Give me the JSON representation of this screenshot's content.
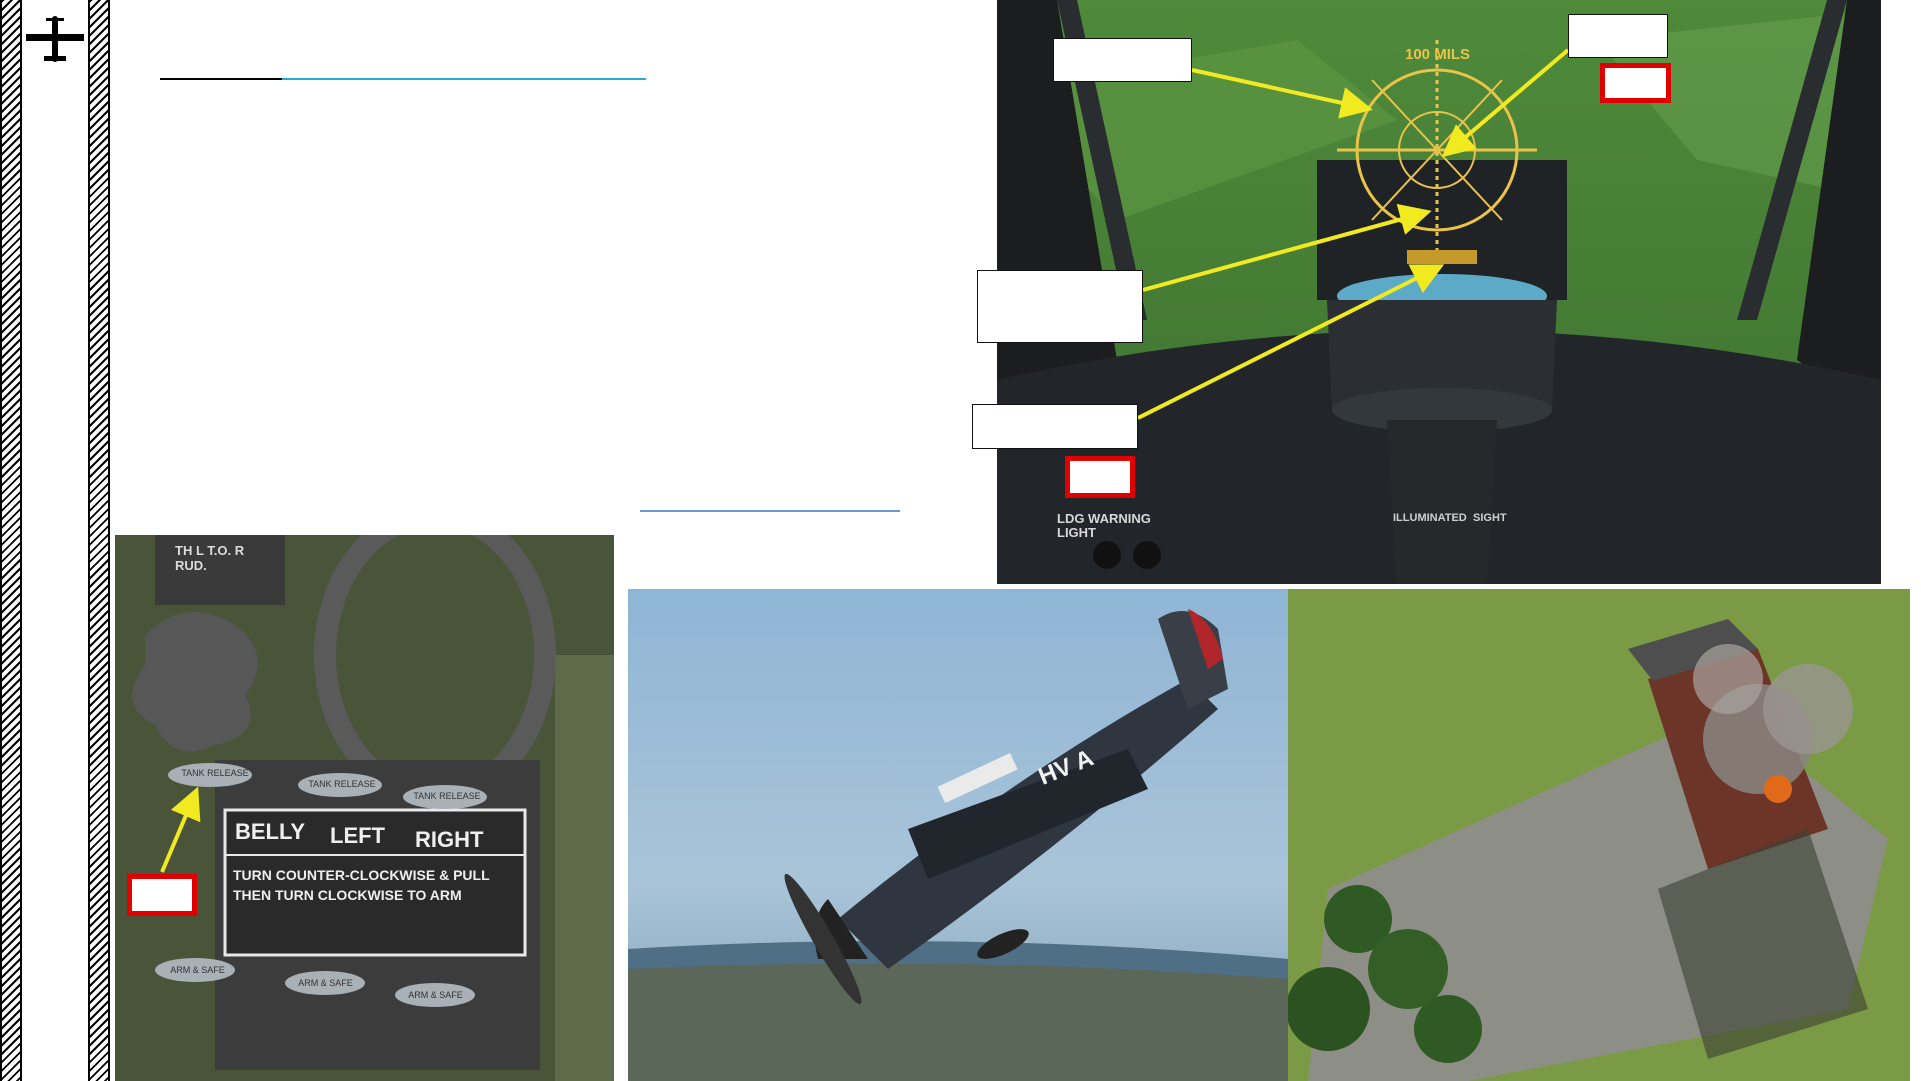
{
  "sidebar": {
    "logo_icon": "plane-icon"
  },
  "cockpit_sight": {
    "reticle_text": "100 MILS",
    "placard_warning": "LDG WARNING LIGHT",
    "placard_sight_l1": "ILLUMINATED",
    "placard_sight_l2": "SIGHT"
  },
  "bomb_release_panel": {
    "switch_labels": [
      "TANK RELEASE",
      "TANK RELEASE",
      "TANK RELEASE"
    ],
    "col_belly": "BELLY",
    "col_left": "LEFT",
    "col_right": "RIGHT",
    "instruction_l1": "TURN COUNTER-CLOCKWISE & PULL",
    "instruction_l2": "THEN TURN CLOCKWISE TO ARM",
    "arm_labels": [
      "ARM & SAFE",
      "ARM & SAFE",
      "ARM & SAFE"
    ],
    "quadrant_text": "TH L T.O. R RUD."
  },
  "aircraft_photo": {
    "fuselage_code": "HV A"
  },
  "colors": {
    "highlight": "#e00000",
    "arrow": "#f2ea20",
    "link": "#29a9d6"
  }
}
